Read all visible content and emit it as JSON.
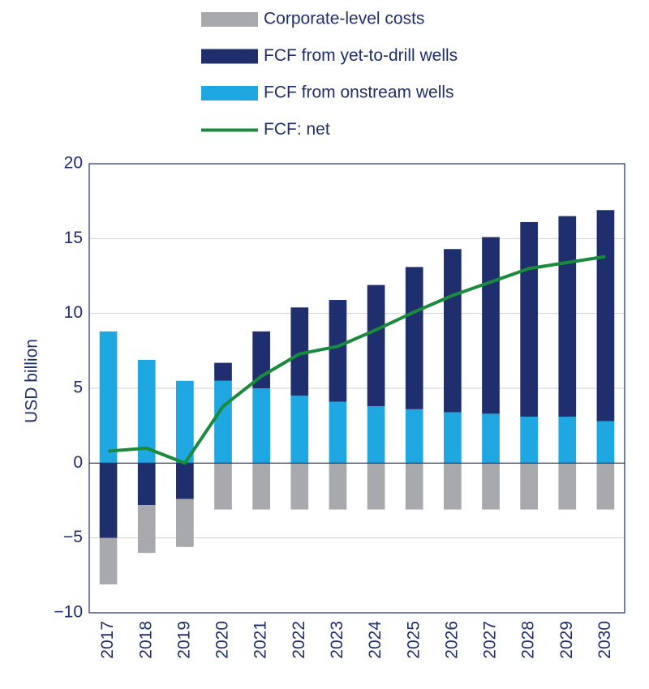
{
  "chart_data": {
    "type": "bar",
    "y_label": "USD billion",
    "categories": [
      "2017",
      "2018",
      "2019",
      "2020",
      "2021",
      "2022",
      "2023",
      "2024",
      "2025",
      "2026",
      "2027",
      "2028",
      "2029",
      "2030"
    ],
    "series": [
      {
        "name": "Corporate-level costs",
        "type": "bar",
        "color": "#a8a9ad",
        "values": [
          -3.1,
          -3.2,
          -3.2,
          -3.1,
          -3.1,
          -3.1,
          -3.1,
          -3.1,
          -3.1,
          -3.1,
          -3.1,
          -3.1,
          -3.1,
          -3.1
        ]
      },
      {
        "name": "FCF from yet-to-drill wells",
        "type": "bar",
        "color": "#1f2f6e",
        "values": [
          -5.0,
          -2.8,
          -2.4,
          1.2,
          3.8,
          5.9,
          6.8,
          8.1,
          9.5,
          10.9,
          11.8,
          13.0,
          13.4,
          14.1
        ]
      },
      {
        "name": "FCF from onstream wells",
        "type": "bar",
        "color": "#1ea7e1",
        "values": [
          8.8,
          6.9,
          5.5,
          5.5,
          5.0,
          4.5,
          4.1,
          3.8,
          3.6,
          3.4,
          3.3,
          3.1,
          3.1,
          2.8
        ]
      },
      {
        "name": "FCF: net",
        "type": "line",
        "color": "#1a8a3c",
        "values": [
          0.8,
          1.0,
          0,
          3.8,
          5.8,
          7.3,
          7.8,
          8.9,
          10.1,
          11.2,
          12.1,
          13.0,
          13.4,
          13.8
        ]
      }
    ],
    "ylim": [
      -10,
      20
    ],
    "yticks": [
      {
        "value": -10,
        "label": "−10"
      },
      {
        "value": -5,
        "label": "−5"
      },
      0,
      5,
      10,
      15,
      20
    ],
    "grid": true
  }
}
